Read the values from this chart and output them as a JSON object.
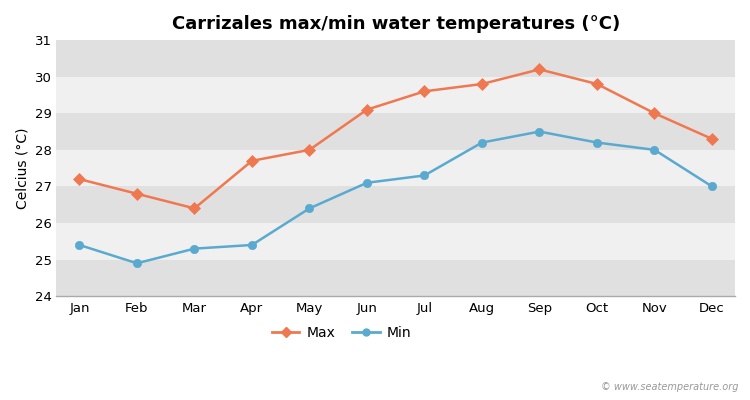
{
  "title": "Carrizales max/min water temperatures (°C)",
  "ylabel": "Celcius (°C)",
  "months": [
    "Jan",
    "Feb",
    "Mar",
    "Apr",
    "May",
    "Jun",
    "Jul",
    "Aug",
    "Sep",
    "Oct",
    "Nov",
    "Dec"
  ],
  "max_values": [
    27.2,
    26.8,
    26.4,
    27.7,
    28.0,
    29.1,
    29.6,
    29.8,
    30.2,
    29.8,
    29.0,
    28.3
  ],
  "min_values": [
    25.4,
    24.9,
    25.3,
    25.4,
    26.4,
    27.1,
    27.3,
    28.2,
    28.5,
    28.2,
    28.0,
    27.0
  ],
  "max_color": "#f07850",
  "min_color": "#5aaad0",
  "ylim": [
    24,
    31
  ],
  "yticks": [
    24,
    25,
    26,
    27,
    28,
    29,
    30,
    31
  ],
  "band_color_light": "#f0f0f0",
  "band_color_dark": "#e0e0e0",
  "figure_bg": "#ffffff",
  "watermark": "© www.seatemperature.org",
  "legend_max": "Max",
  "legend_min": "Min",
  "title_fontsize": 13,
  "label_fontsize": 10,
  "tick_fontsize": 9.5
}
